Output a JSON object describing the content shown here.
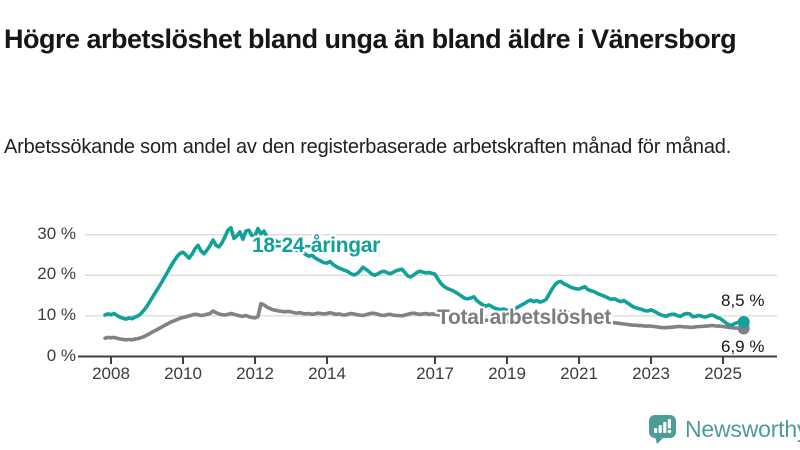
{
  "title": "Högre arbetslöshet bland unga än bland äldre i Vänersborg",
  "subtitle": "Arbetssökande som andel av den registerbaserade arbetskraften månad för månad.",
  "branding": {
    "logo_text": "Newsworthy",
    "logo_color": "#4c9c98"
  },
  "colors": {
    "youth_line": "#12a19a",
    "total_line": "#828286",
    "grid": "#dadada",
    "axis": "#3f3f3f",
    "text": "#161616"
  },
  "chart_data": {
    "type": "line",
    "title": "",
    "xlabel": "",
    "ylabel": "",
    "x_unit": "year (monthly resolution)",
    "x_start": 2007.8333,
    "x_step_years": 0.0833,
    "xlim": [
      2007.1,
      2026.5
    ],
    "ylim": [
      0,
      33
    ],
    "grid": "horizontal",
    "legend_position": "inline-labels",
    "x_ticks": [
      {
        "year": 2008,
        "label": "2008"
      },
      {
        "year": 2010,
        "label": "2010"
      },
      {
        "year": 2012,
        "label": "2012"
      },
      {
        "year": 2014,
        "label": "2014"
      },
      {
        "year": 2017,
        "label": "2017"
      },
      {
        "year": 2019,
        "label": "2019"
      },
      {
        "year": 2021,
        "label": "2021"
      },
      {
        "year": 2023,
        "label": "2023"
      },
      {
        "year": 2025,
        "label": "2025"
      }
    ],
    "y_ticks": [
      {
        "v": 0,
        "label": "0 %"
      },
      {
        "v": 10,
        "label": "10 %"
      },
      {
        "v": 20,
        "label": "20 %"
      },
      {
        "v": 30,
        "label": "30 %"
      }
    ],
    "series": [
      {
        "name": "18-24-åringar",
        "color": "#12a19a",
        "end_label": "8,5 %",
        "end_value": 8.5,
        "values": [
          10.2,
          10.5,
          10.3,
          10.6,
          10.1,
          9.7,
          9.4,
          9.2,
          9.5,
          9.3,
          9.7,
          10.0,
          10.6,
          11.4,
          12.4,
          13.6,
          14.8,
          16.0,
          17.2,
          18.4,
          19.7,
          21.0,
          22.3,
          23.5,
          24.6,
          25.4,
          25.7,
          25.0,
          24.2,
          25.2,
          26.5,
          27.4,
          26.0,
          25.3,
          26.2,
          27.3,
          28.7,
          27.4,
          27.0,
          28.0,
          29.5,
          31.1,
          31.7,
          29.1,
          29.7,
          30.7,
          28.9,
          30.9,
          31.1,
          29.8,
          29.6,
          31.5,
          30.2,
          30.9,
          29.5,
          28.7,
          29.3,
          28.5,
          27.9,
          28.4,
          27.6,
          27.1,
          27.5,
          26.7,
          26.1,
          26.5,
          25.7,
          25.1,
          24.7,
          25.0,
          24.3,
          23.9,
          23.5,
          23.1,
          23.0,
          23.4,
          22.7,
          22.2,
          21.8,
          21.5,
          21.2,
          20.9,
          20.4,
          20.1,
          20.4,
          21.0,
          22.0,
          21.5,
          20.9,
          20.3,
          20.0,
          20.4,
          20.8,
          21.0,
          20.7,
          20.4,
          20.7,
          21.1,
          21.3,
          21.5,
          20.7,
          19.8,
          19.6,
          20.1,
          20.7,
          21.0,
          20.8,
          20.6,
          20.7,
          20.5,
          20.3,
          19.1,
          18.0,
          17.3,
          16.8,
          16.5,
          16.2,
          15.8,
          15.3,
          14.8,
          14.3,
          14.2,
          14.4,
          14.7,
          13.8,
          13.2,
          12.7,
          12.4,
          12.7,
          12.3,
          11.9,
          11.7,
          11.5,
          11.7,
          11.4,
          11.2,
          11.5,
          11.9,
          12.3,
          12.7,
          13.1,
          13.6,
          13.9,
          13.5,
          13.8,
          13.4,
          13.6,
          14.0,
          15.2,
          16.5,
          17.6,
          18.3,
          18.5,
          17.9,
          17.6,
          17.2,
          16.9,
          16.7,
          16.6,
          16.9,
          17.2,
          16.5,
          16.2,
          16.0,
          15.6,
          15.3,
          15.0,
          14.7,
          14.3,
          14.1,
          14.2,
          13.8,
          13.5,
          13.8,
          13.3,
          12.8,
          12.3,
          12.0,
          11.8,
          11.6,
          11.3,
          11.2,
          11.5,
          11.2,
          10.8,
          10.4,
          10.1,
          9.9,
          10.2,
          10.4,
          10.4,
          10.0,
          9.9,
          10.4,
          10.6,
          10.5,
          9.8,
          9.9,
          10.1,
          9.9,
          9.7,
          9.9,
          10.2,
          10.1,
          9.6,
          9.4,
          8.9,
          8.3,
          7.8,
          7.7,
          8.1,
          8.4,
          8.5,
          8.5
        ]
      },
      {
        "name": "Total arbetslöshet",
        "color": "#828286",
        "end_label": "6,9 %",
        "end_value": 6.9,
        "values": [
          4.5,
          4.7,
          4.6,
          4.7,
          4.5,
          4.3,
          4.2,
          4.1,
          4.2,
          4.1,
          4.3,
          4.4,
          4.6,
          4.9,
          5.3,
          5.7,
          6.1,
          6.5,
          6.9,
          7.3,
          7.7,
          8.1,
          8.5,
          8.8,
          9.1,
          9.4,
          9.6,
          9.8,
          10.0,
          10.2,
          10.4,
          10.3,
          10.1,
          10.2,
          10.4,
          10.6,
          11.2,
          10.8,
          10.5,
          10.3,
          10.2,
          10.4,
          10.6,
          10.4,
          10.2,
          10.0,
          9.9,
          10.1,
          9.8,
          9.6,
          9.5,
          9.8,
          13.0,
          12.7,
          12.2,
          11.8,
          11.5,
          11.4,
          11.2,
          11.1,
          11.0,
          11.1,
          11.0,
          10.8,
          10.7,
          10.8,
          10.6,
          10.5,
          10.6,
          10.4,
          10.5,
          10.7,
          10.6,
          10.5,
          10.6,
          10.8,
          10.6,
          10.4,
          10.5,
          10.3,
          10.2,
          10.4,
          10.6,
          10.5,
          10.3,
          10.2,
          10.1,
          10.3,
          10.5,
          10.7,
          10.6,
          10.4,
          10.2,
          10.1,
          10.3,
          10.4,
          10.2,
          10.1,
          10.1,
          10.0,
          10.2,
          10.4,
          10.6,
          10.7,
          10.5,
          10.4,
          10.5,
          10.6,
          10.4,
          10.5,
          10.4,
          10.3,
          10.1,
          10.0,
          9.9,
          9.8,
          9.9,
          9.7,
          9.6,
          9.5,
          9.4,
          9.5,
          9.4,
          9.3,
          9.2,
          9.1,
          9.0,
          8.9,
          9.0,
          8.9,
          8.8,
          8.7,
          8.7,
          8.8,
          8.7,
          8.6,
          8.6,
          8.7,
          8.8,
          8.9,
          9.0,
          9.1,
          9.1,
          9.0,
          9.1,
          9.2,
          9.3,
          9.5,
          10.0,
          10.6,
          11.0,
          11.2,
          11.2,
          11.0,
          10.9,
          10.7,
          10.5,
          10.4,
          10.3,
          10.2,
          10.0,
          9.8,
          9.6,
          9.4,
          9.2,
          9.0,
          8.8,
          8.6,
          8.5,
          8.4,
          8.3,
          8.2,
          8.1,
          8.0,
          7.9,
          7.8,
          7.7,
          7.7,
          7.6,
          7.6,
          7.5,
          7.5,
          7.5,
          7.4,
          7.3,
          7.2,
          7.1,
          7.1,
          7.2,
          7.2,
          7.3,
          7.4,
          7.4,
          7.3,
          7.3,
          7.2,
          7.2,
          7.3,
          7.4,
          7.4,
          7.5,
          7.5,
          7.6,
          7.6,
          7.5,
          7.5,
          7.4,
          7.3,
          7.2,
          7.1,
          7.0,
          7.0,
          6.9,
          6.9
        ]
      }
    ]
  }
}
